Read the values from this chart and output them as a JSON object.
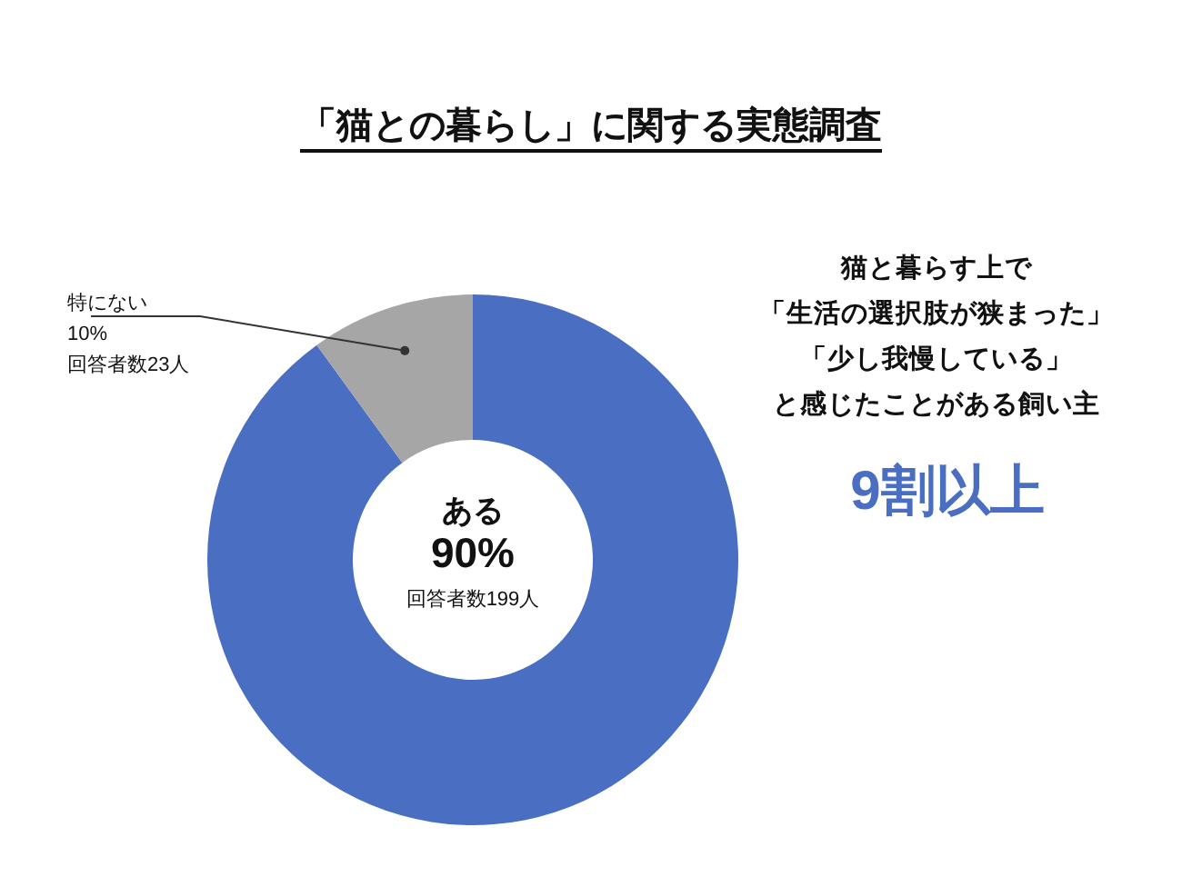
{
  "chart_data": {
    "type": "donut",
    "title": "「猫との暮らし」に関する実態調査",
    "categories": [
      "ある",
      "特にない"
    ],
    "values": [
      90,
      10
    ],
    "colors": [
      "#4a6fc2",
      "#a6a6a6"
    ],
    "value_labels": [
      "90%",
      "10%"
    ],
    "annotations": [
      "回答者数199人",
      "回答者数23人",
      "猫と暮らす上で",
      "「生活の選択肢が狭まった」",
      "「少し我慢している」",
      "と感じたことがある飼い主",
      "9割以上"
    ]
  }
}
